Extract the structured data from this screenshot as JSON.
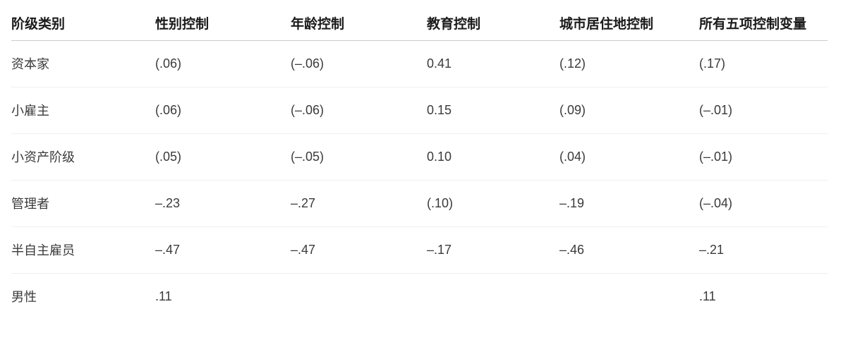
{
  "table": {
    "columns": [
      "阶级类别",
      "性别控制",
      "年龄控制",
      "教育控制",
      "城市居住地控制",
      "所有五项控制变量"
    ],
    "rows": [
      {
        "label": "资本家",
        "values": [
          "(.06)",
          "(–.06)",
          "0.41",
          "(.12)",
          "(.17)"
        ]
      },
      {
        "label": "小雇主",
        "values": [
          "(.06)",
          "(–.06)",
          "0.15",
          "(.09)",
          "(–.01)"
        ]
      },
      {
        "label": "小资产阶级",
        "values": [
          "(.05)",
          "(–.05)",
          "0.10",
          "(.04)",
          "(–.01)"
        ]
      },
      {
        "label": "管理者",
        "values": [
          "–.23",
          "–.27",
          "(.10)",
          "–.19",
          "(–.04)"
        ]
      },
      {
        "label": "半自主雇员",
        "values": [
          "–.47",
          "–.47",
          "–.17",
          "–.46",
          "–.21"
        ]
      },
      {
        "label": "男性",
        "values": [
          ".11",
          "",
          "",
          "",
          ".11"
        ]
      }
    ],
    "colors": {
      "background": "#ffffff",
      "header_text": "#1a1a1a",
      "body_text": "#3a3a3a",
      "header_border": "#cbcbcb",
      "row_border": "#efefef"
    }
  }
}
